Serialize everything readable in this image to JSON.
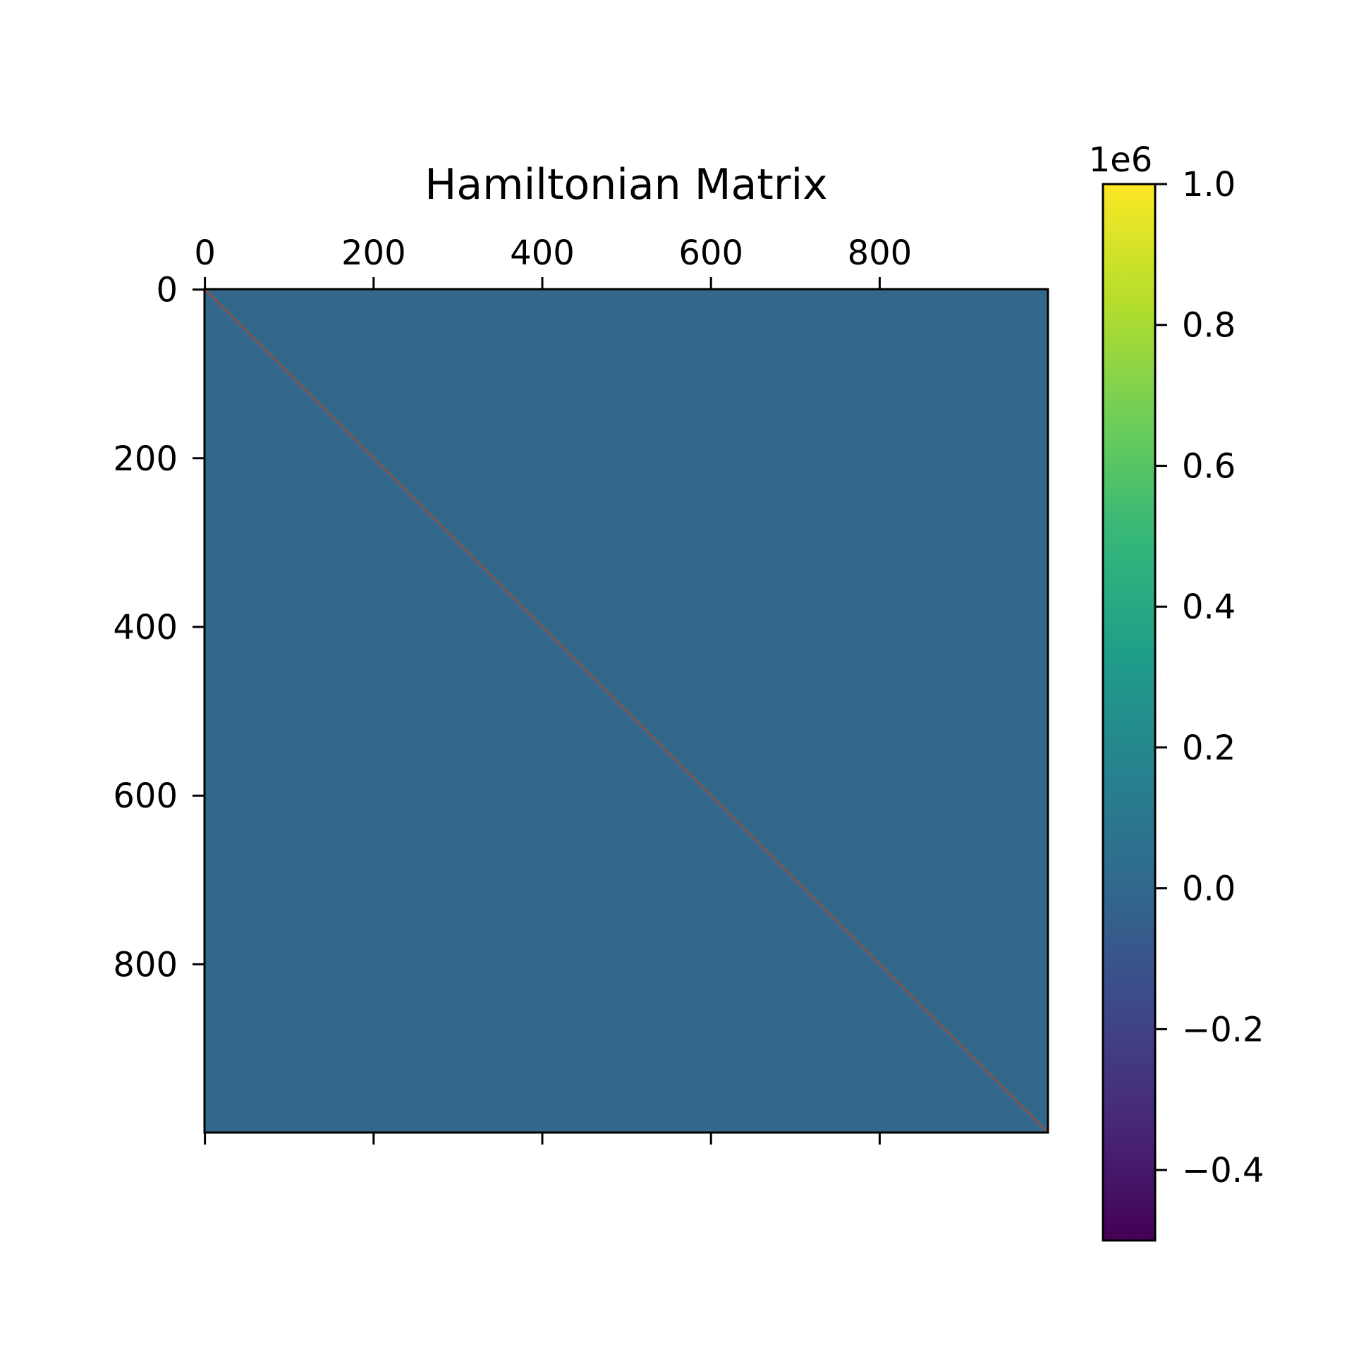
{
  "chart_data": {
    "type": "heatmap",
    "title": "Hamiltonian Matrix",
    "matrix": {
      "rows": 1000,
      "cols": 1000,
      "description_values": {
        "off_diagonal": 0.0,
        "diagonal": 1000000
      },
      "background_color": "#33688a",
      "diagonal_color": "#c4441e"
    },
    "x_axis": {
      "position": "top",
      "ticks": [
        0,
        200,
        400,
        600,
        800
      ],
      "tick_labels": [
        "0",
        "200",
        "400",
        "600",
        "800"
      ],
      "range": [
        -0.5,
        999.5
      ]
    },
    "y_axis": {
      "inverted": true,
      "ticks": [
        0,
        200,
        400,
        600,
        800
      ],
      "tick_labels": [
        "0",
        "200",
        "400",
        "600",
        "800"
      ],
      "range": [
        -0.5,
        999.5
      ]
    },
    "colorbar": {
      "colormap": "viridis",
      "vmin": -500000,
      "vmax": 1000000,
      "offset_label": "1e6",
      "ticks": [
        1.0,
        0.8,
        0.6,
        0.4,
        0.2,
        0.0,
        -0.2,
        -0.4
      ],
      "tick_labels": [
        "1.0",
        "0.8",
        "0.6",
        "0.4",
        "0.2",
        "0.0",
        "−0.2",
        "−0.4"
      ],
      "stops": [
        "#440154",
        "#482878",
        "#3e4989",
        "#31688e",
        "#26828e",
        "#1f9e89",
        "#35b779",
        "#6ece58",
        "#b5de2b",
        "#fde725"
      ]
    }
  }
}
